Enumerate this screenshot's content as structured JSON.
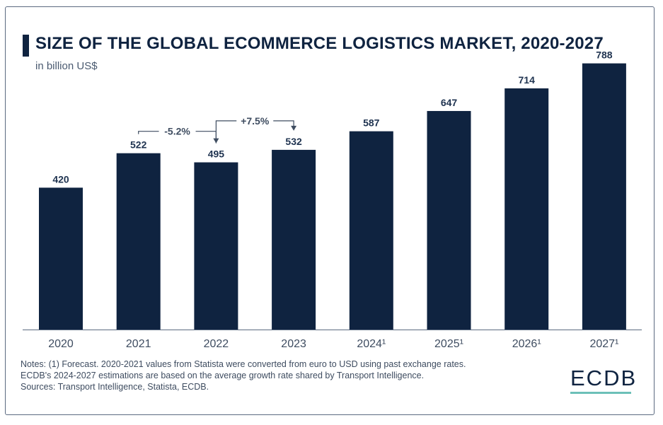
{
  "header": {
    "title": "SIZE OF THE GLOBAL ECOMMERCE LOGISTICS MARKET, 2020-2027",
    "subtitle": "in billion US$"
  },
  "chart_data": {
    "type": "bar",
    "title": "SIZE OF THE GLOBAL ECOMMERCE LOGISTICS MARKET, 2020-2027",
    "ylabel": "in billion US$",
    "xlabel": "",
    "categories": [
      "2020",
      "2021",
      "2022",
      "2023",
      "2024¹",
      "2025¹",
      "2026¹",
      "2027¹"
    ],
    "values": [
      420,
      522,
      495,
      532,
      587,
      647,
      714,
      788
    ],
    "ylim": [
      0,
      850
    ],
    "grid": false,
    "color": "#0f2340",
    "annotations": [
      {
        "from": "2021",
        "to": "2022",
        "text": "-5.2%"
      },
      {
        "from": "2022",
        "to": "2023",
        "text": "+7.5%"
      }
    ]
  },
  "notes": [
    "Notes: (1) Forecast. 2020-2021 values from Statista were converted from euro to USD using past exchange rates.",
    "ECDB's 2024-2027 estimations are based on the average growth rate shared by Transport Intelligence.",
    "Sources: Transport Intelligence, Statista, ECDB."
  ],
  "logo": {
    "text": "ECDB",
    "accent": "#6cc0b8"
  }
}
